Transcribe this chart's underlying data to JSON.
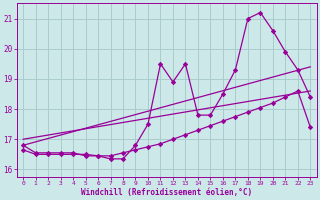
{
  "title": "",
  "xlabel": "Windchill (Refroidissement éolien,°C)",
  "background_color": "#cce8e8",
  "grid_color": "#aacccc",
  "line_color": "#990099",
  "x_ticks": [
    0,
    1,
    2,
    3,
    4,
    5,
    6,
    7,
    8,
    9,
    10,
    11,
    12,
    13,
    14,
    15,
    16,
    17,
    18,
    19,
    20,
    21,
    22,
    23
  ],
  "y_ticks": [
    16,
    17,
    18,
    19,
    20,
    21
  ],
  "xlim": [
    -0.5,
    23.5
  ],
  "ylim": [
    15.75,
    21.5
  ],
  "line1_x": [
    0,
    1,
    2,
    3,
    4,
    5,
    6,
    7,
    8,
    9,
    10,
    11,
    12,
    13,
    14,
    15,
    16,
    17,
    18,
    19,
    20,
    21,
    22,
    23
  ],
  "line1_y": [
    16.8,
    16.55,
    16.55,
    16.55,
    16.55,
    16.45,
    16.45,
    16.35,
    16.35,
    16.8,
    17.5,
    19.5,
    18.9,
    19.5,
    17.8,
    17.8,
    18.5,
    19.3,
    21.0,
    21.2,
    20.6,
    19.9,
    19.3,
    18.4
  ],
  "line2_x": [
    0,
    1,
    2,
    3,
    4,
    5,
    6,
    7,
    8,
    9,
    10,
    11,
    12,
    13,
    14,
    15,
    16,
    17,
    18,
    19,
    20,
    21,
    22,
    23
  ],
  "line2_y": [
    16.65,
    16.5,
    16.5,
    16.5,
    16.5,
    16.5,
    16.45,
    16.45,
    16.55,
    16.65,
    16.75,
    16.85,
    17.0,
    17.15,
    17.3,
    17.45,
    17.6,
    17.75,
    17.9,
    18.05,
    18.2,
    18.4,
    18.6,
    17.4
  ],
  "line3_x": [
    0,
    23
  ],
  "line3_y": [
    16.8,
    19.4
  ],
  "line4_x": [
    0,
    23
  ],
  "line4_y": [
    17.0,
    18.6
  ]
}
